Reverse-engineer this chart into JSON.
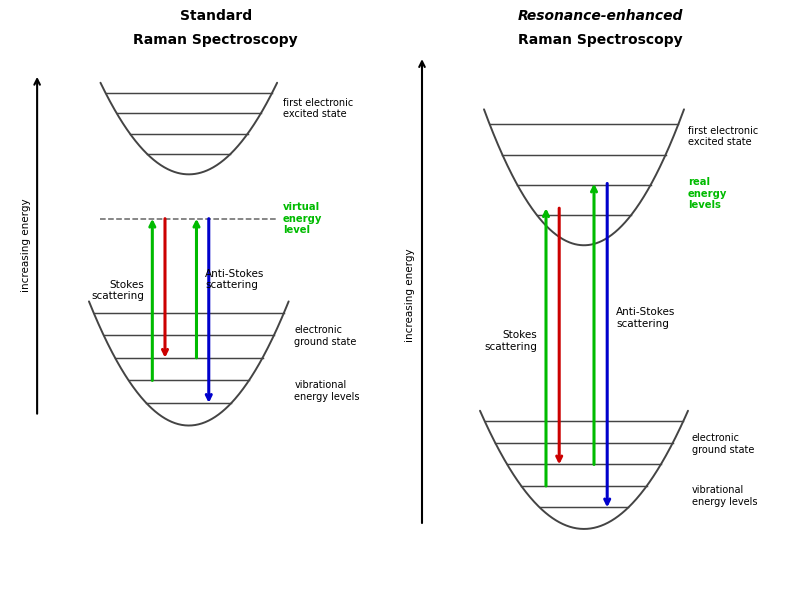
{
  "bg_color": "#ffffff",
  "bowl_color": "#444444",
  "text_color": "#000000",
  "green": "#00bb00",
  "red": "#cc0000",
  "blue": "#0000cc",
  "dashed_color": "#666666",
  "green_label": "#00bb00",
  "lw_bowl": 1.4,
  "lw_arrow": 2.2,
  "lw_energy_arrow": 1.5,
  "title_left_line1": "Standard",
  "title_left_line2": "Raman Spectroscopy",
  "title_right_italic": "Resonance-enhanced",
  "title_right_line2": "Raman Spectroscopy",
  "label_first_excited": "first electronic\nexcited state",
  "label_ground": "electronic\nground state",
  "label_vib": "vibrational\nenergy levels",
  "label_virtual": "virtual\nenergy\nlevel",
  "label_real": "real\nenergy\nlevels",
  "label_stokes": "Stokes\nscattering",
  "label_antistokes": "Anti-Stokes\nscattering",
  "label_energy": "increasing energy"
}
